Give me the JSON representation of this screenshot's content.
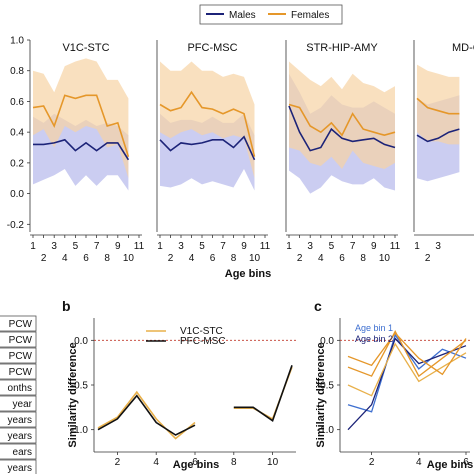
{
  "colors": {
    "males": "#1c2378",
    "females": "#e5972a",
    "males_band": "#b9bcec",
    "females_band": "#f7d3a4",
    "zero_line": "#c0392b",
    "b_v1c": "#e8b04a",
    "b_pfc": "#111111",
    "c_bin1": "#3e6fd0",
    "c_bin2": "#1c2378"
  },
  "legend": {
    "males": "Males",
    "females": "Females"
  },
  "age_labels": [
    "PCW",
    "PCW",
    "PCW",
    "PCW",
    "onths",
    "year",
    "years",
    "years",
    "ears",
    "years"
  ],
  "chart_data": [
    {
      "type": "line",
      "panel": "a",
      "xlabel": "Age bins",
      "ylim": [
        -0.25,
        1.0
      ],
      "yticks": [
        "1.0",
        "0.8",
        "0.6",
        "0.4",
        "0.2",
        "0.0",
        "-0.2"
      ],
      "xticks_top": [
        "1",
        "3",
        "5",
        "7",
        "9",
        "11"
      ],
      "xticks_bottom": [
        "2",
        "4",
        "6",
        "8",
        "10"
      ],
      "subplots": [
        {
          "title": "V1C-STC",
          "series": [
            {
              "name": "Males",
              "values": [
                0.32,
                0.32,
                0.33,
                0.35,
                0.28,
                0.33,
                0.28,
                0.33,
                0.33,
                0.22
              ],
              "low": [
                0.06,
                0.09,
                0.12,
                0.16,
                0.05,
                0.12,
                0.05,
                0.12,
                0.12,
                0.02
              ],
              "high": [
                0.5,
                0.46,
                0.52,
                0.48,
                0.44,
                0.48,
                0.44,
                0.46,
                0.44,
                0.38
              ]
            },
            {
              "name": "Females",
              "values": [
                0.56,
                0.57,
                0.44,
                0.64,
                0.62,
                0.64,
                0.64,
                0.44,
                0.46,
                0.24
              ],
              "low": [
                0.38,
                0.42,
                0.3,
                0.44,
                0.4,
                0.44,
                0.42,
                0.3,
                0.32,
                0.1
              ],
              "high": [
                0.8,
                0.78,
                0.66,
                0.83,
                0.86,
                0.88,
                0.86,
                0.74,
                0.74,
                0.62
              ]
            }
          ]
        },
        {
          "title": "PFC-MSC",
          "series": [
            {
              "name": "Males",
              "values": [
                0.35,
                0.28,
                0.33,
                0.32,
                0.33,
                0.35,
                0.35,
                0.3,
                0.37,
                0.22
              ],
              "low": [
                0.05,
                0.04,
                0.06,
                0.1,
                0.06,
                0.08,
                0.06,
                0.04,
                0.16,
                0.02
              ],
              "high": [
                0.52,
                0.46,
                0.48,
                0.48,
                0.46,
                0.5,
                0.46,
                0.46,
                0.52,
                0.38
              ]
            },
            {
              "name": "Females",
              "values": [
                0.58,
                0.54,
                0.56,
                0.66,
                0.56,
                0.55,
                0.52,
                0.55,
                0.52,
                0.24
              ],
              "low": [
                0.4,
                0.36,
                0.4,
                0.42,
                0.38,
                0.4,
                0.36,
                0.38,
                0.36,
                0.1
              ],
              "high": [
                0.86,
                0.8,
                0.8,
                0.86,
                0.8,
                0.8,
                0.76,
                0.78,
                0.76,
                0.58
              ]
            }
          ]
        },
        {
          "title": "STR-HIP-AMY",
          "series": [
            {
              "name": "Males",
              "values": [
                0.57,
                0.4,
                0.28,
                0.3,
                0.42,
                0.36,
                0.34,
                0.35,
                0.36,
                0.32,
                0.3
              ],
              "low": [
                0.15,
                0.1,
                0.0,
                0.04,
                0.12,
                0.08,
                0.06,
                0.06,
                0.1,
                0.04,
                0.02
              ],
              "high": [
                0.78,
                0.66,
                0.52,
                0.56,
                0.64,
                0.58,
                0.56,
                0.56,
                0.6,
                0.56,
                0.52
              ]
            },
            {
              "name": "Females",
              "values": [
                0.58,
                0.56,
                0.44,
                0.4,
                0.46,
                0.38,
                0.52,
                0.42,
                0.4,
                0.38,
                0.4
              ],
              "low": [
                0.3,
                0.28,
                0.2,
                0.18,
                0.24,
                0.16,
                0.28,
                0.2,
                0.18,
                0.16,
                0.2
              ],
              "high": [
                0.86,
                0.8,
                0.74,
                0.7,
                0.76,
                0.68,
                0.78,
                0.72,
                0.7,
                0.66,
                0.7
              ]
            }
          ]
        },
        {
          "title": "MD-CE",
          "series": [
            {
              "name": "Males",
              "values": [
                0.38,
                0.34,
                0.36,
                0.4,
                0.42
              ],
              "low": [
                0.1,
                0.08,
                0.1,
                0.12,
                0.14
              ],
              "high": [
                0.62,
                0.58,
                0.6,
                0.62,
                0.64
              ]
            },
            {
              "name": "Females",
              "values": [
                0.62,
                0.56,
                0.54,
                0.52,
                0.52
              ],
              "low": [
                0.4,
                0.34,
                0.34,
                0.32,
                0.32
              ],
              "high": [
                0.84,
                0.8,
                0.78,
                0.76,
                0.76
              ]
            }
          ]
        }
      ]
    },
    {
      "type": "line",
      "panel": "b",
      "xlabel": "Age bins",
      "ylabel": "Similarity difference",
      "ylim": [
        -1.25,
        0.25
      ],
      "yticks": [
        "0.0",
        "-0.5",
        "-1.0"
      ],
      "xticks": [
        "2",
        "4",
        "6",
        "8",
        "10"
      ],
      "series": [
        {
          "name": "V1C-STC",
          "x": [
            1,
            2,
            3,
            4,
            5,
            6,
            8,
            9,
            10,
            11
          ],
          "values": [
            -0.98,
            -0.86,
            -0.58,
            -0.88,
            -1.1,
            -0.92,
            -0.76,
            -0.76,
            -0.88,
            -0.3
          ]
        },
        {
          "name": "PFC-MSC",
          "x": [
            1,
            2,
            3,
            4,
            5,
            6,
            8,
            9,
            10,
            11
          ],
          "values": [
            -1.0,
            -0.88,
            -0.62,
            -0.92,
            -1.06,
            -0.95,
            -0.75,
            -0.75,
            -0.9,
            -0.28
          ]
        }
      ]
    },
    {
      "type": "line",
      "panel": "c",
      "xlabel": "Age bins",
      "ylabel": "Similarity difference",
      "ylim": [
        -1.25,
        0.25
      ],
      "yticks": [
        "0.0",
        "-0.5",
        "-1.0"
      ],
      "xticks": [
        "2",
        "4",
        "6",
        "8"
      ],
      "annotations": [
        "Age bin 1",
        "Age bin 2"
      ],
      "series": [
        {
          "name": "Age bin 1",
          "x": [
            1,
            2,
            3,
            4,
            5,
            6
          ],
          "values": [
            -0.72,
            -0.8,
            0.06,
            -0.32,
            -0.1,
            -0.2
          ]
        },
        {
          "name": "Age bin 2",
          "x": [
            1,
            2,
            3,
            4,
            5,
            6
          ],
          "values": [
            -1.0,
            -0.72,
            0.02,
            -0.26,
            -0.16,
            -0.06
          ]
        },
        {
          "name": "",
          "x": [
            1,
            2,
            3,
            4,
            5,
            6
          ],
          "values": [
            -0.3,
            -0.4,
            0.1,
            -0.4,
            -0.2,
            0.0
          ]
        },
        {
          "name": "",
          "x": [
            1,
            2,
            3,
            4,
            5,
            6
          ],
          "values": [
            -0.5,
            -0.62,
            -0.04,
            -0.46,
            -0.3,
            -0.14
          ]
        },
        {
          "name": "",
          "x": [
            1,
            2,
            3,
            4,
            5,
            6
          ],
          "values": [
            -0.18,
            -0.28,
            0.08,
            -0.2,
            -0.38,
            0.02
          ]
        }
      ]
    }
  ]
}
